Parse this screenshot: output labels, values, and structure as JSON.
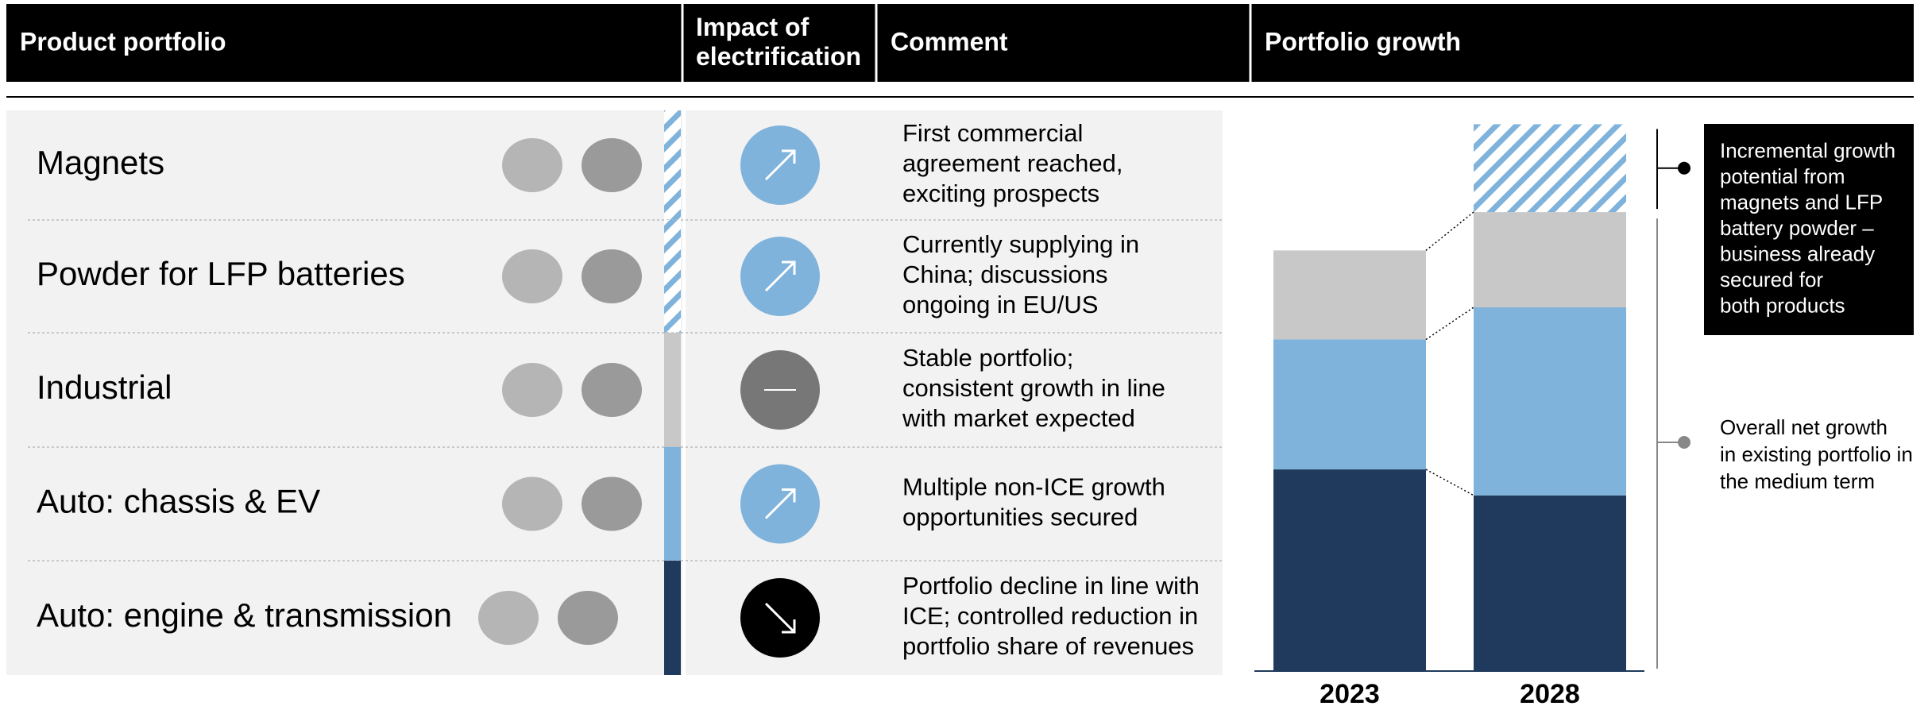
{
  "header": {
    "columns": [
      "Product portfolio",
      [
        "Impact of",
        "electrification"
      ],
      "Comment",
      "Portfolio growth"
    ]
  },
  "table": {
    "rows": [
      {
        "product": "Magnets",
        "comment": [
          "First commercial",
          "agreement reached,",
          "exciting prospects"
        ]
      },
      {
        "product": "Powder for LFP batteries",
        "comment": [
          "Currently supplying in",
          "China; discussions",
          "ongoing in EU/US"
        ]
      },
      {
        "product": "Industrial",
        "comment": [
          "Stable portfolio;",
          "consistent growth in line",
          "with market expected"
        ]
      },
      {
        "product": "Auto: chassis & EV",
        "comment": [
          "Multiple non-ICE growth",
          "opportunities secured"
        ]
      },
      {
        "product": "Auto: engine & transmission",
        "comment": [
          "Portfolio decline in line with",
          "ICE; controlled reduction in",
          "portfolio share of revenues"
        ]
      }
    ]
  },
  "chart_data": {
    "type": "stacked-bar",
    "categories": [
      "2023",
      "2028"
    ],
    "series": [
      {
        "color": "#1f3a5c",
        "values": [
          163,
          142
        ]
      },
      {
        "color": "#7fb3dc",
        "values": [
          105,
          152
        ]
      },
      {
        "color": "#c8c8c8",
        "values": [
          72,
          77
        ]
      },
      {
        "color": "#7fb3dc",
        "hatch": true,
        "values": [
          null,
          71
        ]
      }
    ],
    "ylim": [
      0,
      450
    ],
    "annotations": [
      [
        "Incremental growth",
        "potential from",
        "magnets and LFP",
        "battery powder –",
        "business already",
        "secured for",
        "both products"
      ],
      [
        "Overall net growth",
        "in existing portfolio in",
        "the medium term"
      ]
    ]
  }
}
